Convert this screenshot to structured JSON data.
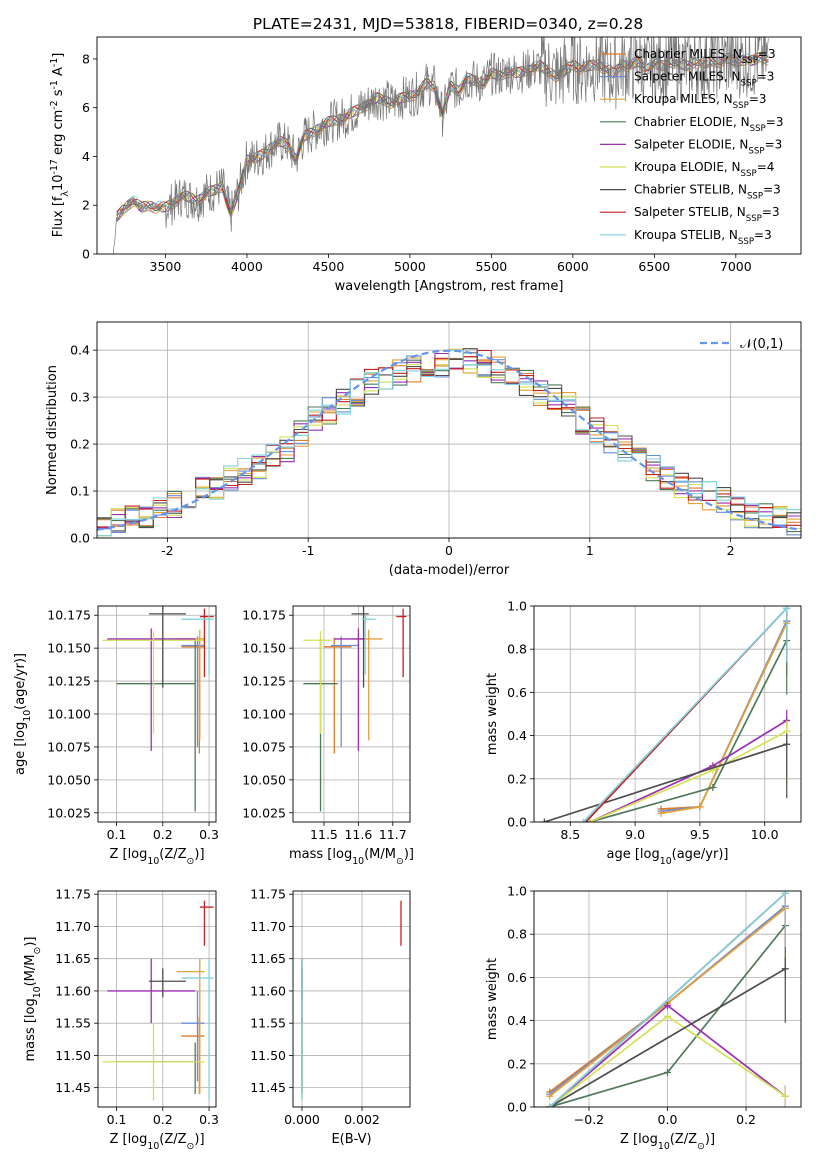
{
  "figure_title": "PLATE=2431, MJD=53818, FIBERID=0340, z=0.28",
  "colors": {
    "grid": "#b0b0b0",
    "normal_curve": "#6495ed",
    "models": [
      "#e97e29",
      "#8e24aa",
      "#f08a8a",
      "#4f7a5a",
      "#9b2fb3",
      "#d4e157",
      "#4d4d4d",
      "#c81f1f",
      "#7fd3df"
    ]
  },
  "models": [
    {
      "label": "Chabrier MILES, N$_{SSP}$=3",
      "name": "Chabrier MILES",
      "nssp": "3",
      "color": "#e07b2a"
    },
    {
      "label": "Salpeter MILES, N$_{SSP}$=3",
      "name": "Salpeter MILES",
      "nssp": "3",
      "color": "#6b8fd6"
    },
    {
      "label": "Kroupa MILES, N$_{SSP}$=3",
      "name": "Kroupa MILES",
      "nssp": "3",
      "color": "#e3a13a"
    },
    {
      "label": "Chabrier ELODIE, N$_{SSP}$=3",
      "name": "Chabrier ELODIE",
      "nssp": "3",
      "color": "#4f7a5a"
    },
    {
      "label": "Salpeter ELODIE, N$_{SSP}$=3",
      "name": "Salpeter ELODIE",
      "nssp": "3",
      "color": "#9b2fb3"
    },
    {
      "label": "Kroupa ELODIE, N$_{SSP}$=4",
      "name": "Kroupa ELODIE",
      "nssp": "4",
      "color": "#d4e157"
    },
    {
      "label": "Chabrier STELIB, N$_{SSP}$=3",
      "name": "Chabrier STELIB",
      "nssp": "3",
      "color": "#4d4d4d"
    },
    {
      "label": "Salpeter STELIB, N$_{SSP}$=3",
      "name": "Salpeter STELIB",
      "nssp": "3",
      "color": "#c81f1f"
    },
    {
      "label": "Kroupa STELIB, N$_{SSP}$=3",
      "name": "Kroupa STELIB",
      "nssp": "3",
      "color": "#7fd3df"
    }
  ],
  "chart_data": [
    {
      "id": "spectrum",
      "type": "line",
      "xlabel": "wavelength [Angstrom, rest frame]",
      "ylabel": "Flux [f$_\\lambda$10$^{-17}$ erg cm$^{-2}$ s$^{-1}$ A$^{-1}$]",
      "xlim": [
        3080,
        7400
      ],
      "ylim": [
        0,
        8.9
      ],
      "xticks": [
        3500,
        4000,
        4500,
        5000,
        5500,
        6000,
        6500,
        7000
      ],
      "yticks": [
        0,
        2,
        4,
        6,
        8
      ],
      "grid": false,
      "legend": "right",
      "data_color": "#777777",
      "observed": {
        "x": [
          3180,
          3200,
          3250,
          3300,
          3350,
          3400,
          3450,
          3500,
          3550,
          3600,
          3650,
          3700,
          3750,
          3800,
          3850,
          3900,
          3950,
          4000,
          4050,
          4100,
          4150,
          4200,
          4250,
          4300,
          4350,
          4400,
          4450,
          4500,
          4550,
          4600,
          4650,
          4700,
          4750,
          4800,
          4850,
          4900,
          4950,
          5000,
          5050,
          5100,
          5150,
          5200,
          5250,
          5300,
          5350,
          5400,
          5450,
          5500,
          5550,
          5600,
          5650,
          5700,
          5750,
          5800,
          5850,
          5900,
          5950,
          6000,
          6050,
          6100,
          6150,
          6200,
          6250,
          6300,
          6350,
          6400,
          6450,
          6500,
          6550,
          6600,
          6650,
          6700,
          6750,
          6800,
          6850,
          6900,
          6950,
          7000,
          7050,
          7100,
          7150,
          7200
        ],
        "y": [
          0,
          1.5,
          1.9,
          2.2,
          1.9,
          2.0,
          1.9,
          1.9,
          2.1,
          2.4,
          2.3,
          2.2,
          2.5,
          2.6,
          2.8,
          1.6,
          2.6,
          3.9,
          3.9,
          4.1,
          4.4,
          4.6,
          4.5,
          3.9,
          4.8,
          5.0,
          5.2,
          5.4,
          5.5,
          5.6,
          5.8,
          6.0,
          6.2,
          6.4,
          6.3,
          6.2,
          6.4,
          6.5,
          6.6,
          7.0,
          6.9,
          5.7,
          6.9,
          6.7,
          7.2,
          7.1,
          7.0,
          7.4,
          7.3,
          7.5,
          7.4,
          7.5,
          7.6,
          7.7,
          7.5,
          7.3,
          7.5,
          7.8,
          7.6,
          7.7,
          7.8,
          7.6,
          7.4,
          7.8,
          7.7,
          7.9,
          7.6,
          7.8,
          7.7,
          7.9,
          7.8,
          7.7,
          7.9,
          7.8,
          7.9,
          7.9,
          8.0,
          7.9,
          8.0,
          7.9,
          8.1,
          8.0
        ]
      }
    },
    {
      "id": "residual-histogram",
      "type": "line",
      "xlabel": "(data-model)/error",
      "ylabel": "Normed distribution",
      "xlim": [
        -2.5,
        2.5
      ],
      "ylim": [
        0,
        0.46
      ],
      "xticks": [
        -2,
        -1,
        0,
        1,
        2
      ],
      "yticks": [
        0.0,
        0.1,
        0.2,
        0.3,
        0.4
      ],
      "yticklabels": [
        "0.0",
        "0.1",
        "0.2",
        "0.3",
        "0.4"
      ],
      "grid": true,
      "legend": "top-right",
      "normal_label": "$\\mathcal{N}(0,1)$",
      "bin_centers": [
        -2.45,
        -2.35,
        -2.25,
        -2.15,
        -2.05,
        -1.95,
        -1.85,
        -1.75,
        -1.65,
        -1.55,
        -1.45,
        -1.35,
        -1.25,
        -1.15,
        -1.05,
        -0.95,
        -0.85,
        -0.75,
        -0.65,
        -0.55,
        -0.45,
        -0.35,
        -0.25,
        -0.15,
        -0.05,
        0.05,
        0.15,
        0.25,
        0.35,
        0.45,
        0.55,
        0.65,
        0.75,
        0.85,
        0.95,
        1.05,
        1.15,
        1.25,
        1.35,
        1.45,
        1.55,
        1.65,
        1.75,
        1.85,
        1.95,
        2.05,
        2.15,
        2.25,
        2.35,
        2.45
      ],
      "histogram": [
        0.03,
        0.035,
        0.04,
        0.05,
        0.06,
        0.07,
        0.085,
        0.1,
        0.11,
        0.13,
        0.14,
        0.15,
        0.17,
        0.19,
        0.22,
        0.25,
        0.27,
        0.29,
        0.31,
        0.33,
        0.34,
        0.35,
        0.36,
        0.37,
        0.37,
        0.38,
        0.38,
        0.37,
        0.36,
        0.34,
        0.33,
        0.31,
        0.3,
        0.28,
        0.25,
        0.23,
        0.21,
        0.19,
        0.17,
        0.15,
        0.13,
        0.11,
        0.1,
        0.09,
        0.08,
        0.06,
        0.05,
        0.045,
        0.04,
        0.035
      ]
    },
    {
      "id": "age-vs-Z",
      "type": "scatter",
      "xlabel": "Z [log$_{10}$($Z/Z_\\odot$)]",
      "ylabel": "age  [log$_{10}$($age/yr$)]",
      "xlim": [
        0.06,
        0.315
      ],
      "ylim": [
        10.018,
        10.182
      ],
      "xticks": [
        0.1,
        0.2,
        0.3
      ],
      "xticklabels": [
        "0.1",
        "0.2",
        "0.3"
      ],
      "yticks": [
        10.025,
        10.05,
        10.075,
        10.1,
        10.125,
        10.15,
        10.175
      ],
      "yticklabels": [
        "10.025",
        "10.050",
        "10.075",
        "10.100",
        "10.125",
        "10.150",
        "10.175"
      ],
      "grid": true
    },
    {
      "id": "age-vs-mass",
      "type": "scatter",
      "xlabel": "mass [log$_{10}$($M/M_\\odot$)]",
      "ylabel": "",
      "xlim": [
        11.41,
        11.75
      ],
      "ylim": [
        10.018,
        10.182
      ],
      "xticks": [
        11.5,
        11.6,
        11.7
      ],
      "xticklabels": [
        "11.5",
        "11.6",
        "11.7"
      ],
      "yticks": [
        10.025,
        10.05,
        10.075,
        10.1,
        10.125,
        10.15,
        10.175
      ],
      "yticklabels": [
        "10.025",
        "10.050",
        "10.075",
        "10.100",
        "10.125",
        "10.150",
        "10.175"
      ],
      "grid": true
    },
    {
      "id": "mass-weight-vs-age",
      "type": "line",
      "xlabel": "age  [log$_{10}$($age/yr$)]",
      "ylabel": "mass weight",
      "xlim": [
        8.22,
        10.28
      ],
      "ylim": [
        0,
        1
      ],
      "xticks": [
        8.5,
        9.0,
        9.5,
        10.0
      ],
      "xticklabels": [
        "8.5",
        "9.0",
        "9.5",
        "10.0"
      ],
      "yticks": [
        0.0,
        0.2,
        0.4,
        0.6,
        0.8,
        1.0
      ],
      "yticklabels": [
        "0.0",
        "0.2",
        "0.4",
        "0.6",
        "0.8",
        "1.0"
      ],
      "grid": true
    },
    {
      "id": "mass-vs-Z",
      "type": "scatter",
      "xlabel": "Z [log$_{10}$($Z/Z_\\odot$)]",
      "ylabel": "mass [log$_{10}$($M/M_\\odot$)]",
      "xlim": [
        0.06,
        0.315
      ],
      "ylim": [
        11.42,
        11.755
      ],
      "xticks": [
        0.1,
        0.2,
        0.3
      ],
      "xticklabels": [
        "0.1",
        "0.2",
        "0.3"
      ],
      "yticks": [
        11.45,
        11.5,
        11.55,
        11.6,
        11.65,
        11.7,
        11.75
      ],
      "yticklabels": [
        "11.45",
        "11.50",
        "11.55",
        "11.60",
        "11.65",
        "11.70",
        "11.75"
      ],
      "grid": true
    },
    {
      "id": "mass-vs-ebv",
      "type": "scatter",
      "xlabel": "E(B-V)",
      "ylabel": "",
      "xlim": [
        -0.0003,
        0.0036
      ],
      "ylim": [
        11.42,
        11.755
      ],
      "xticks": [
        0.0,
        0.002
      ],
      "xticklabels": [
        "0.000",
        "0.002"
      ],
      "yticks": [
        11.45,
        11.5,
        11.55,
        11.6,
        11.65,
        11.7,
        11.75
      ],
      "yticklabels": [
        "11.45",
        "11.50",
        "11.55",
        "11.60",
        "11.65",
        "11.70",
        "11.75"
      ],
      "grid": true
    },
    {
      "id": "mass-weight-vs-Z",
      "type": "line",
      "xlabel": "Z [log$_{10}$($Z/Z_\\odot$)]",
      "ylabel": "mass weight",
      "xlim": [
        -0.34,
        0.34
      ],
      "ylim": [
        0,
        1
      ],
      "xticks": [
        -0.2,
        0.0,
        0.2
      ],
      "xticklabels": [
        "−0.2",
        "0.0",
        "0.2"
      ],
      "yticks": [
        0.0,
        0.2,
        0.4,
        0.6,
        0.8,
        1.0
      ],
      "yticklabels": [
        "0.0",
        "0.2",
        "0.4",
        "0.6",
        "0.8",
        "1.0"
      ],
      "grid": true
    }
  ],
  "model_points": {
    "Z": [
      0.279,
      0.275,
      0.28,
      0.27,
      0.175,
      0.18,
      0.2,
      0.29,
      0.3
    ],
    "Z_lo": [
      0.24,
      0.24,
      0.23,
      0.1,
      0.08,
      0.07,
      0.17,
      0.28,
      0.24
    ],
    "Z_hi": [
      0.29,
      0.29,
      0.29,
      0.27,
      0.27,
      0.29,
      0.25,
      0.31,
      0.31
    ],
    "age": [
      10.151,
      10.152,
      10.157,
      10.123,
      10.157,
      10.156,
      10.176,
      10.174,
      10.172
    ],
    "age_lo": [
      10.07,
      10.075,
      10.08,
      10.026,
      10.072,
      10.085,
      10.12,
      10.128,
      10.13
    ],
    "age_hi": [
      10.158,
      10.159,
      10.164,
      10.157,
      10.165,
      10.163,
      10.182,
      10.18,
      10.175
    ],
    "mass": [
      11.53,
      11.55,
      11.63,
      11.49,
      11.6,
      11.49,
      11.615,
      11.73,
      11.62
    ],
    "mass_lo": [
      11.44,
      11.46,
      11.44,
      11.44,
      11.55,
      11.43,
      11.59,
      11.67,
      11.43
    ],
    "mass_hi": [
      11.56,
      11.6,
      11.65,
      11.52,
      11.65,
      11.55,
      11.635,
      11.74,
      11.65
    ],
    "mass_x_lo": [
      11.5,
      11.52,
      11.58,
      11.44,
      11.53,
      11.44,
      11.58,
      11.71,
      11.61
    ],
    "mass_x_hi": [
      11.58,
      11.6,
      11.67,
      11.54,
      11.62,
      11.52,
      11.63,
      11.74,
      11.65
    ],
    "ebv": [
      0.0,
      0.0,
      0.0,
      0.0,
      0.0,
      0.0,
      0.0,
      0.0033,
      0.0
    ]
  },
  "mass_weight_age": {
    "ages": [
      8.3,
      8.65,
      9.2,
      9.5,
      9.6,
      10.17
    ],
    "series": [
      {
        "x": [
          9.2,
          9.5,
          10.17
        ],
        "y": [
          0.06,
          0.07,
          0.93
        ]
      },
      {
        "x": [
          9.2,
          9.5,
          10.17
        ],
        "y": [
          0.05,
          0.07,
          0.93
        ]
      },
      {
        "x": [
          9.2,
          9.5,
          10.17
        ],
        "y": [
          0.04,
          0.07,
          0.92
        ]
      },
      {
        "x": [
          8.65,
          9.6,
          10.17
        ],
        "y": [
          0.0,
          0.16,
          0.84
        ]
      },
      {
        "x": [
          8.65,
          9.6,
          10.17
        ],
        "y": [
          0.0,
          0.26,
          0.47
        ]
      },
      {
        "x": [
          8.65,
          9.6,
          10.17
        ],
        "y": [
          0.0,
          0.24,
          0.42
        ]
      },
      {
        "x": [
          8.3,
          10.17
        ],
        "y": [
          0.0,
          0.36
        ]
      },
      {
        "x": [
          8.62,
          10.17
        ],
        "y": [
          0.0,
          0.99
        ]
      },
      {
        "x": [
          8.6,
          10.17
        ],
        "y": [
          0.0,
          0.99
        ]
      }
    ]
  },
  "mass_weight_Z": {
    "series": [
      {
        "x": [
          -0.3,
          0.0,
          0.3
        ],
        "y": [
          0.07,
          0.48,
          0.93
        ]
      },
      {
        "x": [
          -0.3,
          0.0,
          0.3
        ],
        "y": [
          0.06,
          0.48,
          0.93
        ]
      },
      {
        "x": [
          -0.3,
          0.0,
          0.3
        ],
        "y": [
          0.05,
          0.48,
          0.92
        ]
      },
      {
        "x": [
          -0.3,
          0.0,
          0.3
        ],
        "y": [
          0.0,
          0.16,
          0.84
        ]
      },
      {
        "x": [
          -0.3,
          0.0,
          0.3
        ],
        "y": [
          0.0,
          0.47,
          0.05
        ]
      },
      {
        "x": [
          -0.3,
          0.0,
          0.3
        ],
        "y": [
          0.0,
          0.42,
          0.05
        ]
      },
      {
        "x": [
          -0.3,
          0.3
        ],
        "y": [
          0.0,
          0.64
        ]
      },
      {
        "x": [
          -0.3,
          0.3
        ],
        "y": [
          0.0,
          0.99
        ]
      },
      {
        "x": [
          -0.3,
          0.3
        ],
        "y": [
          0.0,
          0.99
        ]
      }
    ]
  }
}
